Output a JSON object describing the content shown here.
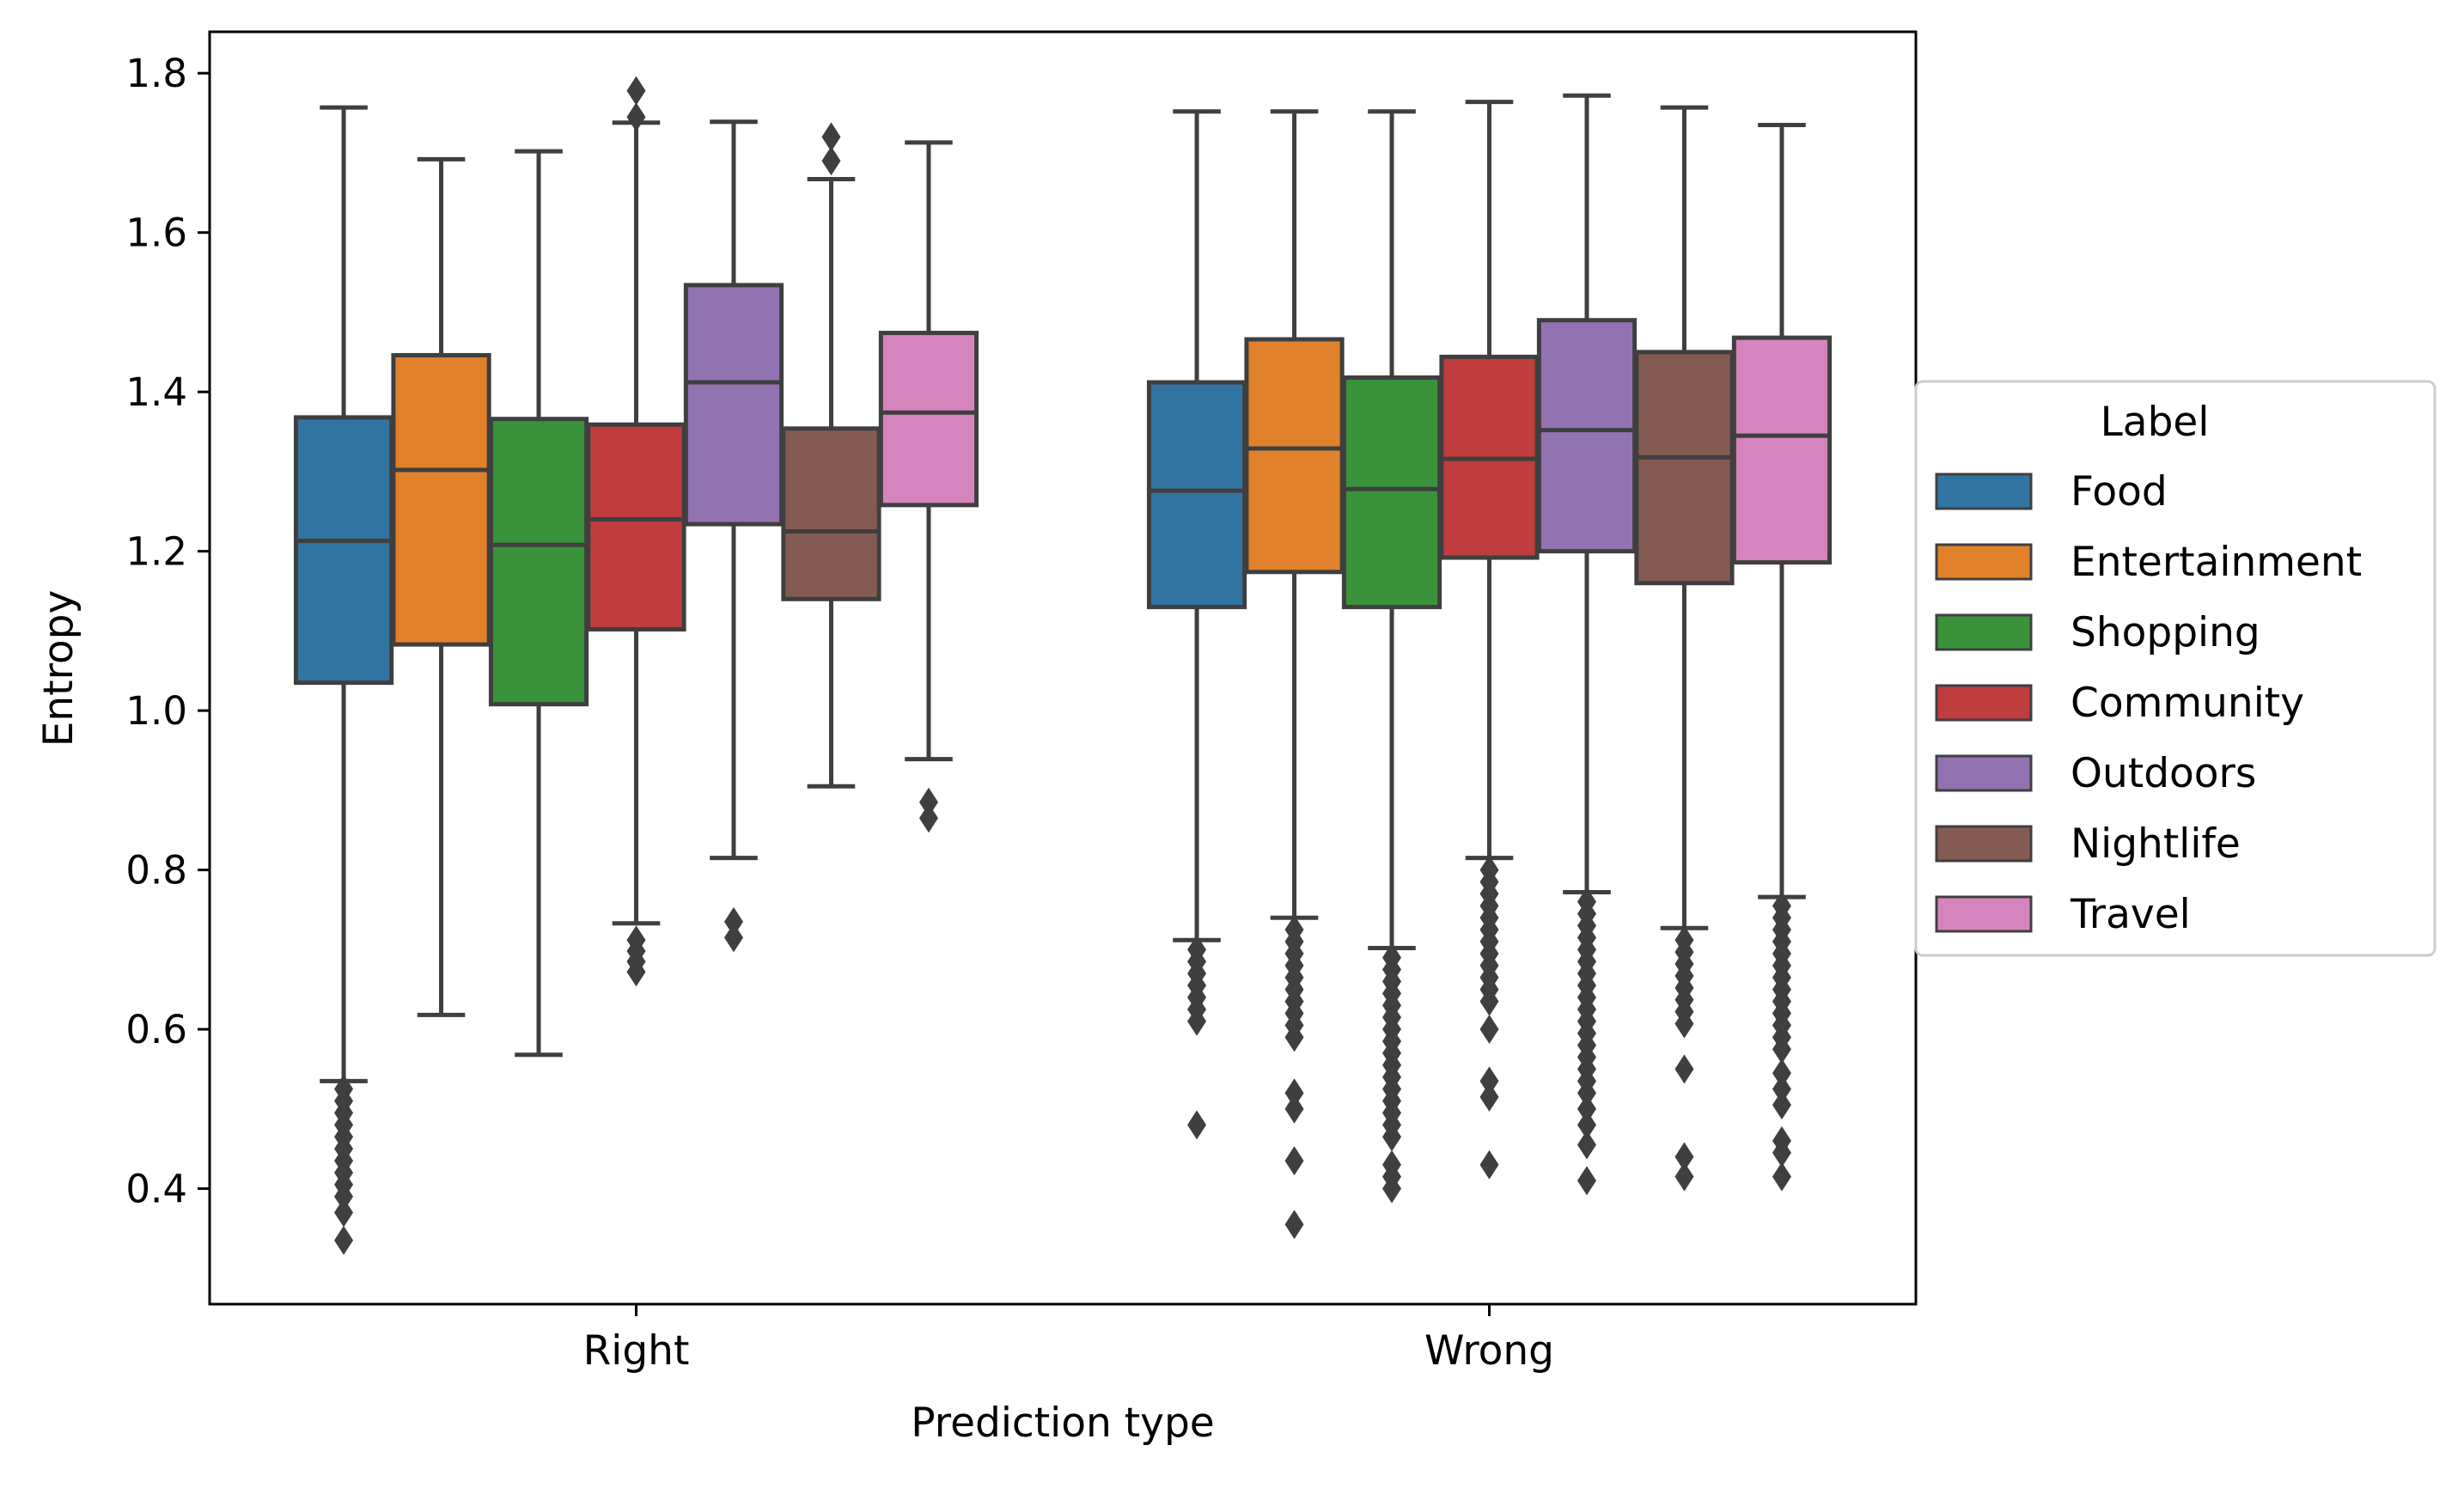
{
  "chart_data": {
    "type": "boxplot",
    "xlabel": "Prediction type",
    "ylabel": "Entropy",
    "ylim": [
      0.255,
      1.852
    ],
    "yticks": [
      0.4,
      0.6,
      0.8,
      1.0,
      1.2,
      1.4,
      1.6,
      1.8
    ],
    "ytick_labels": [
      "0.4",
      "0.6",
      "0.8",
      "1.0",
      "1.2",
      "1.4",
      "1.6",
      "1.8"
    ],
    "categories": [
      "Right",
      "Wrong"
    ],
    "grid": false,
    "legend": {
      "title": "Label",
      "position": "center-right outside"
    },
    "series": [
      {
        "name": "Food",
        "color": "#3274a1",
        "boxes": [
          {
            "whisker_low": 0.535,
            "q1": 1.035,
            "median": 1.213,
            "q3": 1.368,
            "whisker_high": 1.757,
            "outliers": [
              0.525,
              0.51,
              0.495,
              0.48,
              0.465,
              0.45,
              0.435,
              0.42,
              0.405,
              0.39,
              0.37,
              0.335
            ]
          },
          {
            "whisker_low": 0.712,
            "q1": 1.13,
            "median": 1.276,
            "q3": 1.412,
            "whisker_high": 1.752,
            "outliers": [
              0.7,
              0.685,
              0.67,
              0.655,
              0.64,
              0.625,
              0.61,
              0.48
            ]
          }
        ]
      },
      {
        "name": "Entertainment",
        "color": "#e1812c",
        "boxes": [
          {
            "whisker_low": 0.618,
            "q1": 1.083,
            "median": 1.302,
            "q3": 1.446,
            "whisker_high": 1.692,
            "outliers": []
          },
          {
            "whisker_low": 0.74,
            "q1": 1.174,
            "median": 1.329,
            "q3": 1.466,
            "whisker_high": 1.752,
            "outliers": [
              0.725,
              0.71,
              0.695,
              0.68,
              0.665,
              0.65,
              0.635,
              0.62,
              0.605,
              0.59,
              0.52,
              0.5,
              0.435,
              0.355
            ]
          }
        ]
      },
      {
        "name": "Shopping",
        "color": "#3a923a",
        "boxes": [
          {
            "whisker_low": 0.568,
            "q1": 1.008,
            "median": 1.208,
            "q3": 1.366,
            "whisker_high": 1.702,
            "outliers": []
          },
          {
            "whisker_low": 0.702,
            "q1": 1.13,
            "median": 1.278,
            "q3": 1.418,
            "whisker_high": 1.752,
            "outliers": [
              0.69,
              0.675,
              0.66,
              0.645,
              0.63,
              0.615,
              0.6,
              0.585,
              0.57,
              0.555,
              0.54,
              0.525,
              0.51,
              0.495,
              0.48,
              0.465,
              0.43,
              0.415,
              0.4
            ]
          }
        ]
      },
      {
        "name": "Community",
        "color": "#c03d3e",
        "boxes": [
          {
            "whisker_low": 0.733,
            "q1": 1.102,
            "median": 1.24,
            "q3": 1.359,
            "whisker_high": 1.738,
            "outliers": [
              0.712,
              0.698,
              0.685,
              0.672,
              1.745,
              1.778
            ]
          },
          {
            "whisker_low": 0.815,
            "q1": 1.192,
            "median": 1.316,
            "q3": 1.444,
            "whisker_high": 1.764,
            "outliers": [
              0.8,
              0.785,
              0.77,
              0.755,
              0.74,
              0.725,
              0.71,
              0.695,
              0.68,
              0.665,
              0.65,
              0.635,
              0.6,
              0.535,
              0.515,
              0.43
            ]
          }
        ]
      },
      {
        "name": "Outdoors",
        "color": "#9372b2",
        "boxes": [
          {
            "whisker_low": 0.815,
            "q1": 1.234,
            "median": 1.412,
            "q3": 1.534,
            "whisker_high": 1.739,
            "outliers": [
              0.735,
              0.715
            ]
          },
          {
            "whisker_low": 0.772,
            "q1": 1.2,
            "median": 1.352,
            "q3": 1.49,
            "whisker_high": 1.772,
            "outliers": [
              0.76,
              0.745,
              0.73,
              0.715,
              0.7,
              0.685,
              0.67,
              0.655,
              0.64,
              0.625,
              0.61,
              0.595,
              0.58,
              0.565,
              0.55,
              0.535,
              0.52,
              0.5,
              0.48,
              0.455,
              0.41
            ]
          }
        ]
      },
      {
        "name": "Nightlife",
        "color": "#845b53",
        "boxes": [
          {
            "whisker_low": 0.905,
            "q1": 1.14,
            "median": 1.225,
            "q3": 1.354,
            "whisker_high": 1.667,
            "outliers": [
              1.69,
              1.72
            ]
          },
          {
            "whisker_low": 0.727,
            "q1": 1.16,
            "median": 1.318,
            "q3": 1.45,
            "whisker_high": 1.757,
            "outliers": [
              0.712,
              0.697,
              0.682,
              0.667,
              0.652,
              0.637,
              0.622,
              0.607,
              0.55,
              0.44,
              0.415
            ]
          }
        ]
      },
      {
        "name": "Travel",
        "color": "#d684bd",
        "boxes": [
          {
            "whisker_low": 0.939,
            "q1": 1.258,
            "median": 1.374,
            "q3": 1.474,
            "whisker_high": 1.713,
            "outliers": [
              0.885,
              0.865
            ]
          },
          {
            "whisker_low": 0.766,
            "q1": 1.186,
            "median": 1.345,
            "q3": 1.468,
            "whisker_high": 1.735,
            "outliers": [
              0.755,
              0.74,
              0.725,
              0.71,
              0.695,
              0.68,
              0.665,
              0.65,
              0.635,
              0.62,
              0.605,
              0.59,
              0.575,
              0.545,
              0.525,
              0.505,
              0.46,
              0.445,
              0.415
            ]
          }
        ]
      }
    ]
  }
}
